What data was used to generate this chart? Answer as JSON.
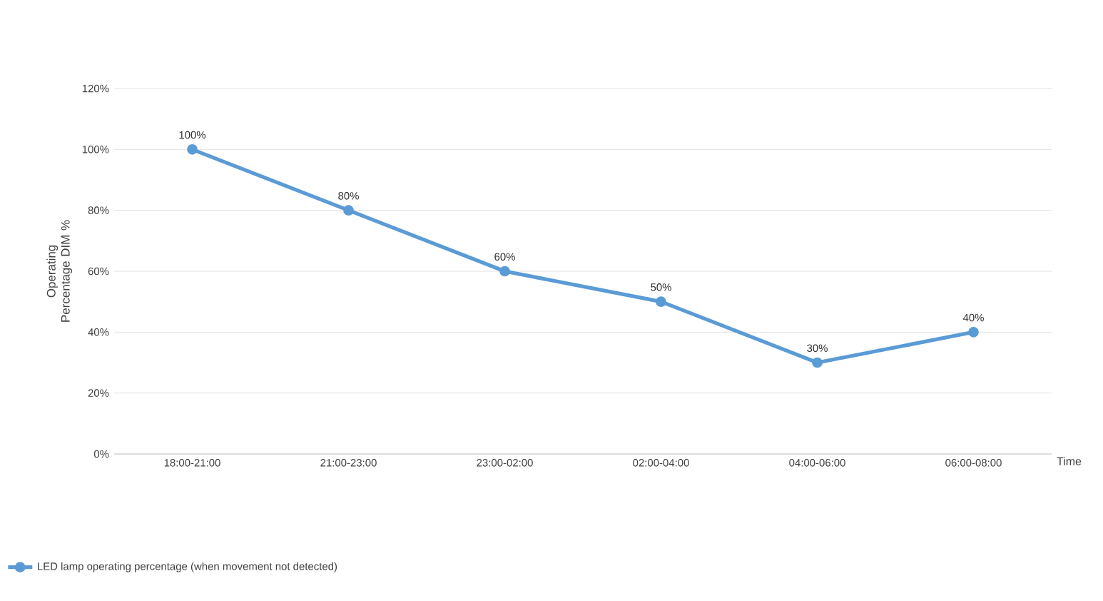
{
  "chart_data": {
    "type": "line",
    "categories": [
      "18:00-21:00",
      "21:00-23:00",
      "23:00-02:00",
      "02:00-04:00",
      "04:00-06:00",
      "06:00-08:00"
    ],
    "series": [
      {
        "name": "LED lamp operating percentage (when movement not detected)",
        "color": "#5b9bd5",
        "values": [
          100,
          80,
          60,
          50,
          30,
          40
        ],
        "value_labels": [
          "100%",
          "80%",
          "60%",
          "50%",
          "30%",
          "40%"
        ]
      }
    ],
    "xlabel": "Time",
    "ylabel": "Operating Percentage DIM %",
    "ylim": [
      0,
      120
    ],
    "yticks": [
      {
        "value": 0,
        "label": "0%"
      },
      {
        "value": 20,
        "label": "20%"
      },
      {
        "value": 40,
        "label": "40%"
      },
      {
        "value": 60,
        "label": "60%"
      },
      {
        "value": 80,
        "label": "80%"
      },
      {
        "value": 100,
        "label": "100%"
      },
      {
        "value": 120,
        "label": "120%"
      }
    ],
    "grid": "y",
    "legend": "bottom left",
    "marker": "circle",
    "line_style": "solid"
  }
}
